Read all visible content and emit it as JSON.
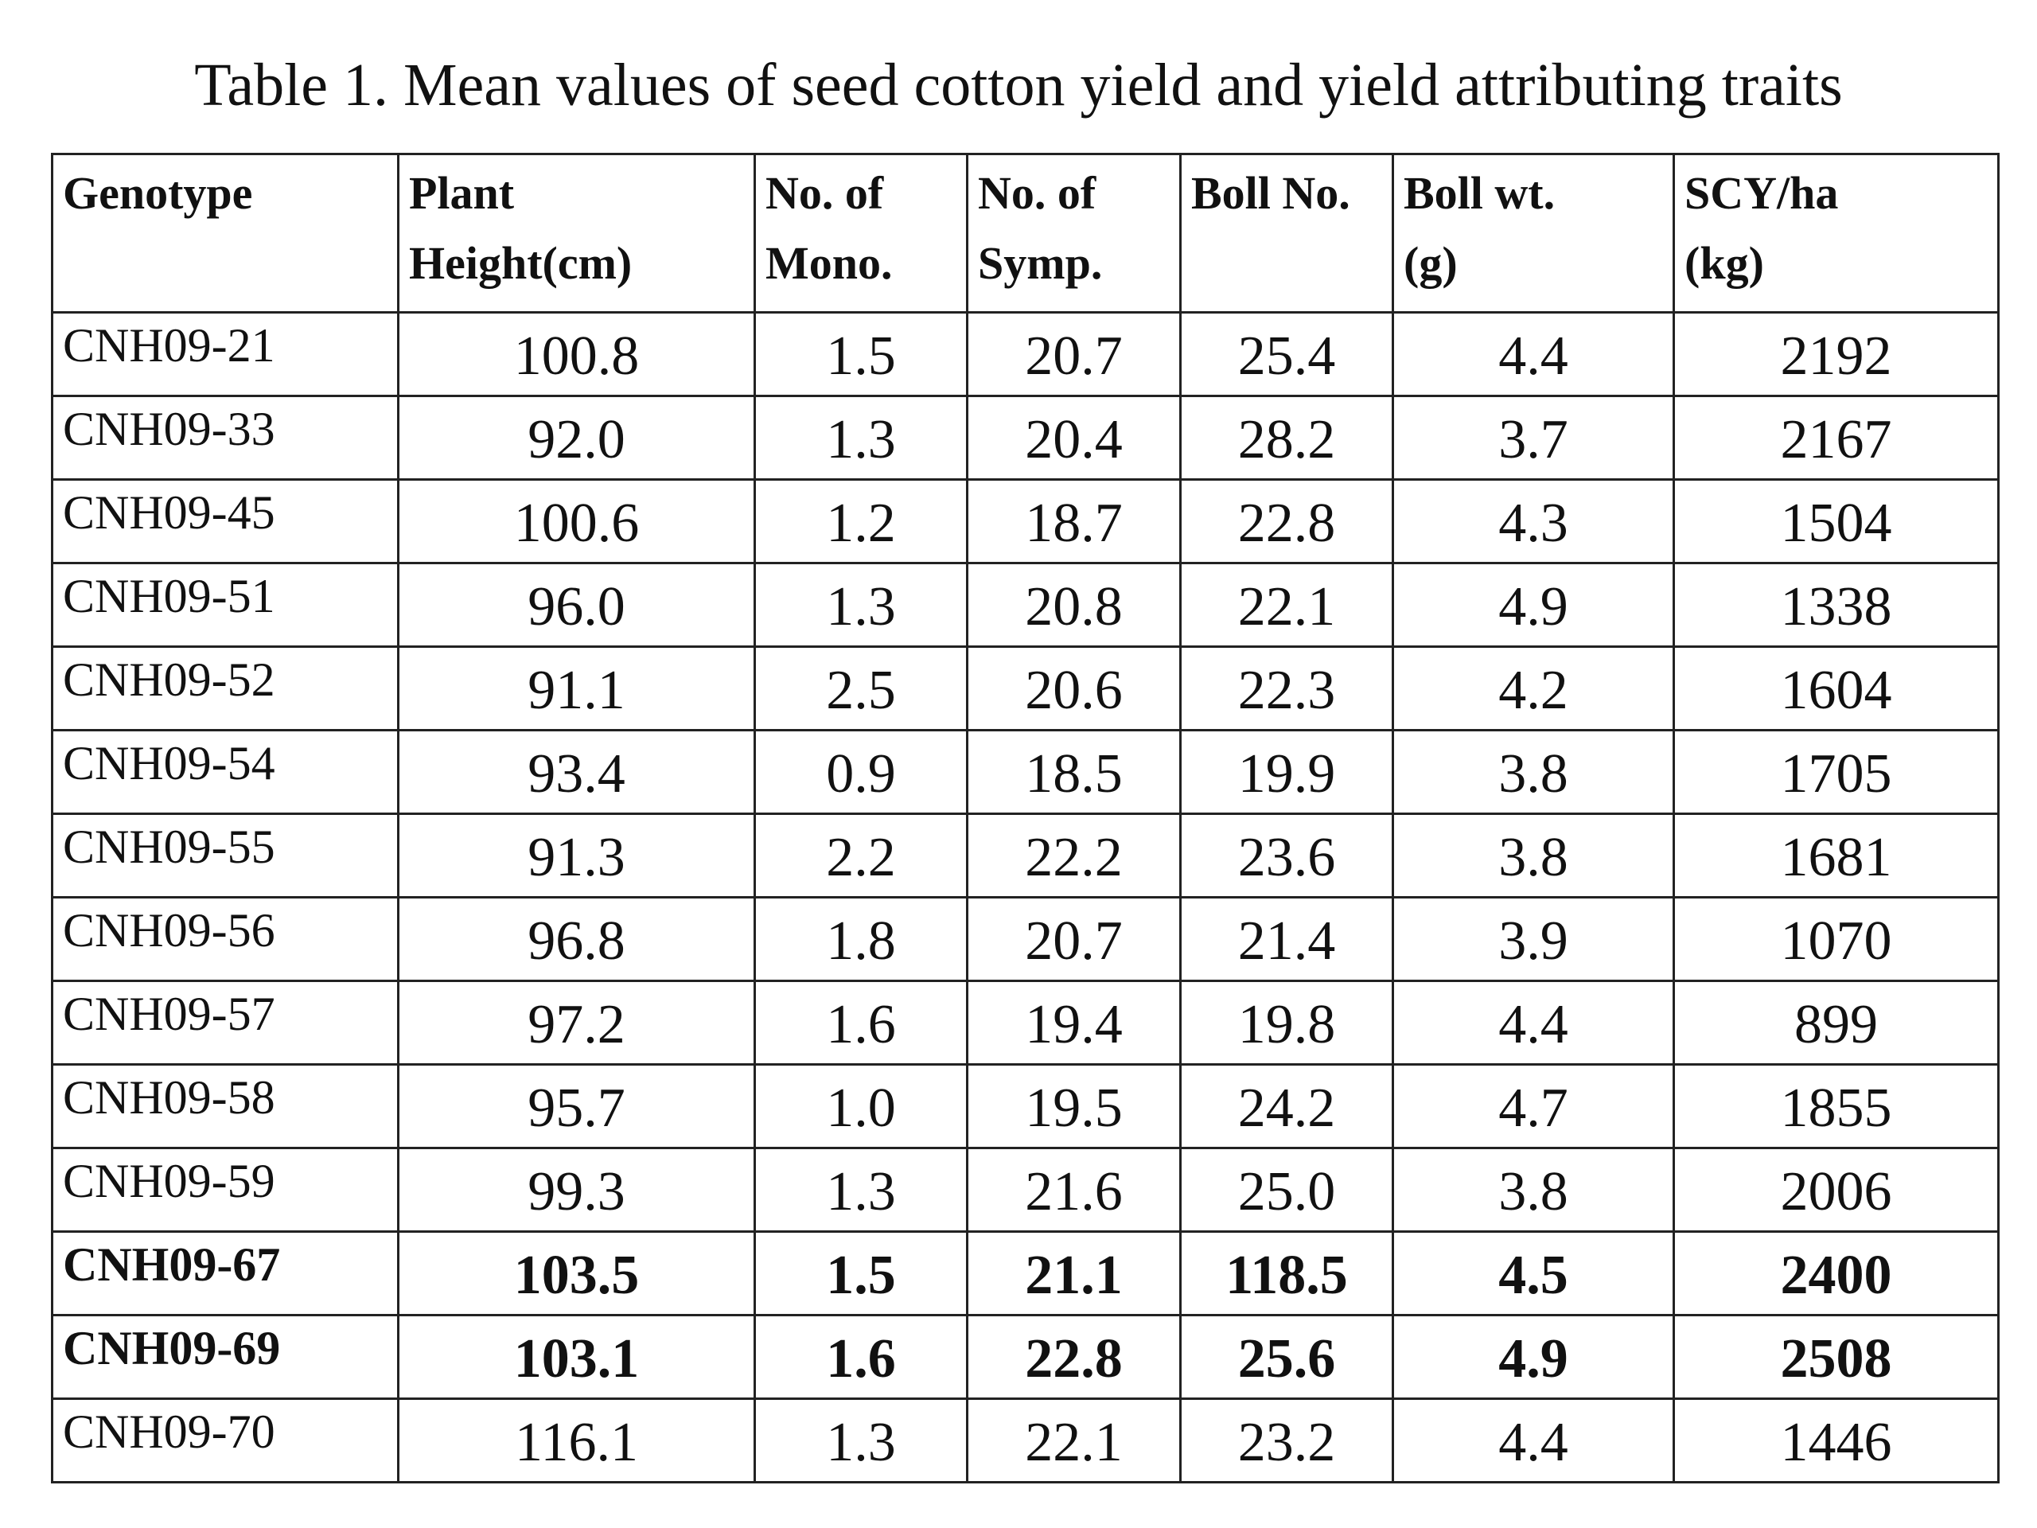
{
  "title": "Table 1. Mean values of seed cotton yield and yield attributing traits",
  "table": {
    "header": [
      [
        "Genotype"
      ],
      [
        "Plant",
        "Height(cm)"
      ],
      [
        "No. of",
        "Mono."
      ],
      [
        "No. of",
        "Symp."
      ],
      [
        "Boll No."
      ],
      [
        "Boll wt.",
        "(g)"
      ],
      [
        "SCY/ha",
        "(kg)"
      ]
    ],
    "rows": [
      {
        "cells": [
          "CNH09-21",
          "100.8",
          "1.5",
          "20.7",
          "25.4",
          "4.4",
          "2192"
        ],
        "bold": false
      },
      {
        "cells": [
          "CNH09-33",
          "92.0",
          "1.3",
          "20.4",
          "28.2",
          "3.7",
          "2167"
        ],
        "bold": false
      },
      {
        "cells": [
          "CNH09-45",
          "100.6",
          "1.2",
          "18.7",
          "22.8",
          "4.3",
          "1504"
        ],
        "bold": false
      },
      {
        "cells": [
          "CNH09-51",
          "96.0",
          "1.3",
          "20.8",
          "22.1",
          "4.9",
          "1338"
        ],
        "bold": false
      },
      {
        "cells": [
          "CNH09-52",
          "91.1",
          "2.5",
          "20.6",
          "22.3",
          "4.2",
          "1604"
        ],
        "bold": false
      },
      {
        "cells": [
          "CNH09-54",
          "93.4",
          "0.9",
          "18.5",
          "19.9",
          "3.8",
          "1705"
        ],
        "bold": false
      },
      {
        "cells": [
          "CNH09-55",
          "91.3",
          "2.2",
          "22.2",
          "23.6",
          "3.8",
          "1681"
        ],
        "bold": false
      },
      {
        "cells": [
          "CNH09-56",
          "96.8",
          "1.8",
          "20.7",
          "21.4",
          "3.9",
          "1070"
        ],
        "bold": false
      },
      {
        "cells": [
          "CNH09-57",
          "97.2",
          "1.6",
          "19.4",
          "19.8",
          "4.4",
          "899"
        ],
        "bold": false
      },
      {
        "cells": [
          "CNH09-58",
          "95.7",
          "1.0",
          "19.5",
          "24.2",
          "4.7",
          "1855"
        ],
        "bold": false
      },
      {
        "cells": [
          "CNH09-59",
          "99.3",
          "1.3",
          "21.6",
          "25.0",
          "3.8",
          "2006"
        ],
        "bold": false
      },
      {
        "cells": [
          "CNH09-67",
          "103.5",
          "1.5",
          "21.1",
          "118.5",
          "4.5",
          "2400"
        ],
        "bold": true
      },
      {
        "cells": [
          "CNH09-69",
          "103.1",
          "1.6",
          "22.8",
          "25.6",
          "4.9",
          "2508"
        ],
        "bold": true
      },
      {
        "cells": [
          "CNH09-70",
          "116.1",
          "1.3",
          "22.1",
          "23.2",
          "4.4",
          "1446"
        ],
        "bold": false
      }
    ]
  }
}
